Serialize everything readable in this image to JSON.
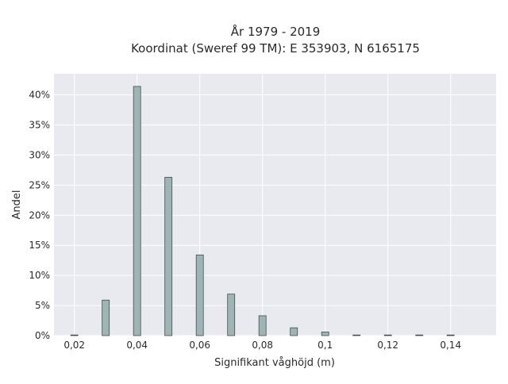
{
  "chart_data": {
    "type": "bar",
    "title": [
      "År 1979 - 2019",
      "Koordinat (Sweref 99 TM): E 353903, N 6165175"
    ],
    "xlabel": "Signifikant våghöjd (m)",
    "ylabel": "Andel",
    "x": [
      0.02,
      0.03,
      0.04,
      0.05,
      0.06,
      0.07,
      0.08,
      0.09,
      0.1,
      0.11,
      0.12,
      0.13,
      0.14
    ],
    "values": [
      0.1,
      5.9,
      41.4,
      26.3,
      13.4,
      6.9,
      3.3,
      1.3,
      0.6,
      0.05,
      0.02,
      0.02,
      0.02
    ],
    "xlim": [
      0.0135,
      0.1545
    ],
    "ylim": [
      0,
      43.5
    ],
    "x_ticks": [
      0.02,
      0.04,
      0.06,
      0.08,
      0.1,
      0.12,
      0.14
    ],
    "x_tick_labels": [
      "0,02",
      "0,04",
      "0,06",
      "0,08",
      "0,1",
      "0,12",
      "0,14"
    ],
    "y_ticks": [
      0,
      5,
      10,
      15,
      20,
      25,
      30,
      35,
      40
    ],
    "y_tick_labels": [
      "0%",
      "5%",
      "10%",
      "15%",
      "20%",
      "25%",
      "30%",
      "35%",
      "40%"
    ],
    "grid": true,
    "colors": {
      "bar_fill": "#9fb5b5",
      "bar_stroke": "#3e4e4e",
      "plot_bg": "#e9e9f0",
      "grid": "#ffffff"
    }
  }
}
